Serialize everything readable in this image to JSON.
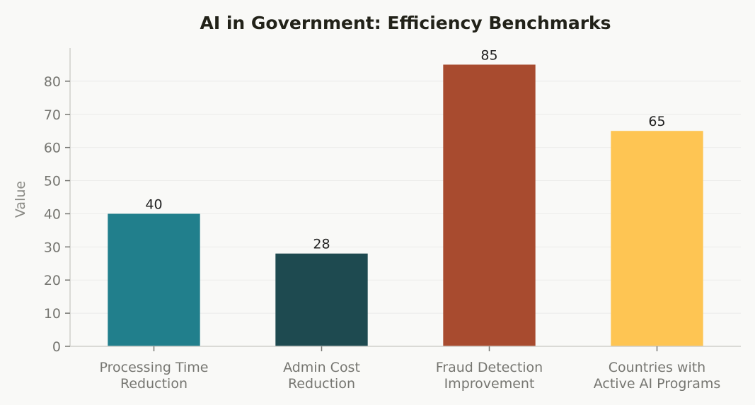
{
  "chart_data": {
    "type": "bar",
    "title": "AI in Government: Efficiency Benchmarks",
    "xlabel": "",
    "ylabel": "Value",
    "categories": [
      [
        "Processing Time",
        "Reduction"
      ],
      [
        "Admin Cost",
        "Reduction"
      ],
      [
        "Fraud Detection",
        "Improvement"
      ],
      [
        "Countries with",
        "Active AI Programs"
      ]
    ],
    "values": [
      40,
      28,
      85,
      65
    ],
    "value_labels": [
      "40",
      "28",
      "85",
      "65"
    ],
    "colors": [
      "#217f8c",
      "#1e4a50",
      "#a84b2f",
      "#fec553"
    ],
    "ylim": [
      0,
      90
    ],
    "yticks": [
      0,
      10,
      20,
      30,
      40,
      50,
      60,
      70,
      80
    ],
    "grid": "horizontal",
    "legend": "none"
  }
}
